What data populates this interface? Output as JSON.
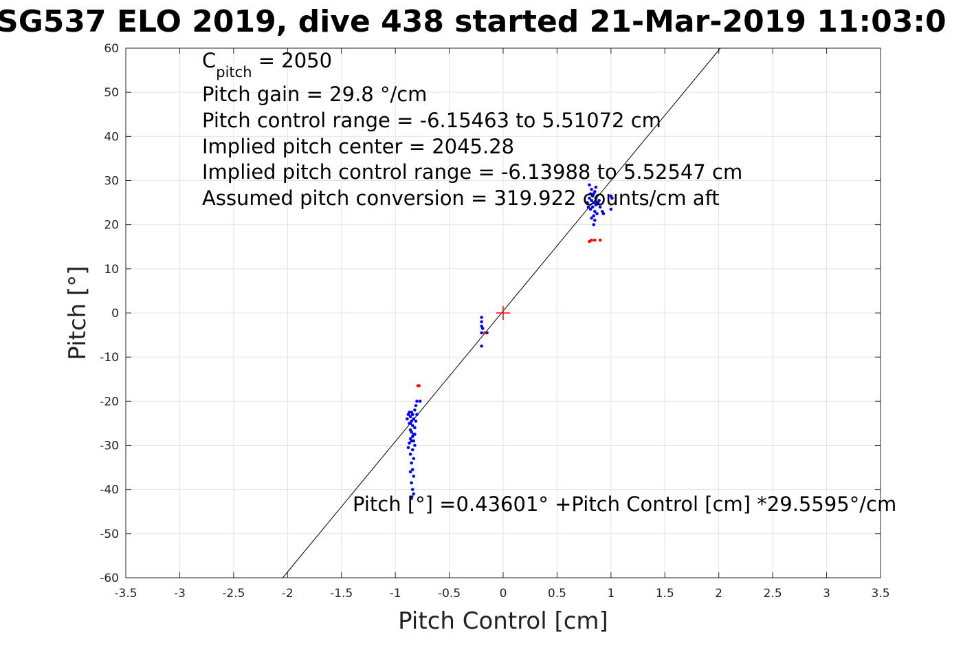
{
  "chart_data": {
    "type": "scatter",
    "title": "SG537 ELO 2019, dive 438 started 21-Mar-2019 11:03:0",
    "xlabel": "Pitch Control [cm]",
    "ylabel": "Pitch [°]",
    "xlim": [
      -3.5,
      3.5
    ],
    "ylim": [
      -60,
      60
    ],
    "xticks": [
      "-3.5",
      "-3",
      "-2.5",
      "-2",
      "-1.5",
      "-1",
      "-0.5",
      "0",
      "0.5",
      "1",
      "1.5",
      "2",
      "2.5",
      "3",
      "3.5"
    ],
    "yticks": [
      "60",
      "50",
      "40",
      "30",
      "20",
      "10",
      "0",
      "-10",
      "-20",
      "-30",
      "-40",
      "-50",
      "-60"
    ],
    "grid": true,
    "annotations": {
      "c_pitch_label": "C",
      "c_pitch_sub": "pitch",
      "c_pitch_value": " = 2050",
      "line2": "Pitch gain = 29.8 °/cm",
      "line3": "Pitch control range = -6.15463 to 5.51072 cm",
      "line4": "Implied pitch center = 2045.28",
      "line5": "Implied pitch control range = -6.13988 to 5.52547 cm",
      "line6": "Assumed pitch conversion = 319.922 counts/cm aft",
      "fit_equation": "Pitch [°] =0.43601° +Pitch Control [cm] *29.5595°/cm"
    },
    "fit_line": {
      "intercept": 0.43601,
      "slope": 29.5595,
      "color": "#000000"
    },
    "center_marker": {
      "x": 0,
      "y": 0,
      "color": "#ff0000"
    },
    "series": [
      {
        "color": "#0000ff",
        "points": [
          [
            -0.85,
            -22.5
          ],
          [
            -0.84,
            -23
          ],
          [
            -0.86,
            -23.5
          ],
          [
            -0.83,
            -24
          ],
          [
            -0.85,
            -24.5
          ],
          [
            -0.87,
            -25
          ],
          [
            -0.84,
            -25.5
          ],
          [
            -0.82,
            -26
          ],
          [
            -0.86,
            -26.5
          ],
          [
            -0.85,
            -27
          ],
          [
            -0.83,
            -27.5
          ],
          [
            -0.84,
            -28
          ],
          [
            -0.86,
            -28.5
          ],
          [
            -0.85,
            -29
          ],
          [
            -0.82,
            -30
          ],
          [
            -0.84,
            -31
          ],
          [
            -0.86,
            -32
          ],
          [
            -0.83,
            -33
          ],
          [
            -0.85,
            -34
          ],
          [
            -0.84,
            -35.5
          ],
          [
            -0.83,
            -37
          ],
          [
            -0.85,
            -38.5
          ],
          [
            -0.84,
            -40
          ],
          [
            -0.83,
            -41
          ],
          [
            -0.85,
            -42
          ],
          [
            -0.88,
            -23
          ],
          [
            -0.89,
            -24
          ],
          [
            -0.87,
            -29.5
          ],
          [
            -0.88,
            -30.5
          ],
          [
            -0.81,
            -21
          ],
          [
            -0.82,
            -22
          ],
          [
            -0.8,
            -20
          ],
          [
            -0.81,
            -24.5
          ],
          [
            -0.82,
            -27.5
          ],
          [
            -0.86,
            -36
          ],
          [
            -0.77,
            -20
          ],
          [
            -0.8,
            -23
          ],
          [
            -0.87,
            -22.5
          ],
          [
            -0.86,
            -25
          ],
          [
            -0.83,
            -29
          ],
          [
            -0.2,
            -1
          ],
          [
            -0.2,
            -2
          ],
          [
            -0.2,
            -3
          ],
          [
            -0.19,
            -3.5
          ],
          [
            -0.2,
            -4.5
          ],
          [
            -0.2,
            -7.5
          ],
          [
            -0.15,
            -4.5
          ],
          [
            0.8,
            29
          ],
          [
            0.82,
            28
          ],
          [
            0.84,
            27
          ],
          [
            0.86,
            28.5
          ],
          [
            0.8,
            26
          ],
          [
            0.82,
            25.5
          ],
          [
            0.84,
            25
          ],
          [
            0.86,
            24.5
          ],
          [
            0.88,
            25
          ],
          [
            0.83,
            24
          ],
          [
            0.81,
            23.5
          ],
          [
            0.85,
            23
          ],
          [
            0.87,
            22.5
          ],
          [
            0.84,
            22
          ],
          [
            0.82,
            21.5
          ],
          [
            0.85,
            21
          ],
          [
            0.84,
            20
          ],
          [
            0.9,
            24
          ],
          [
            0.92,
            23
          ],
          [
            1.0,
            26.5
          ],
          [
            1.01,
            26
          ],
          [
            1.0,
            23.5
          ],
          [
            0.93,
            22.5
          ],
          [
            0.78,
            25
          ],
          [
            0.79,
            24
          ],
          [
            0.81,
            27
          ],
          [
            0.83,
            26.5
          ],
          [
            0.86,
            26
          ],
          [
            0.89,
            25.5
          ],
          [
            0.85,
            27.5
          ]
        ]
      },
      {
        "color": "#ff0000",
        "points": [
          [
            -0.79,
            -16.5
          ],
          [
            -0.78,
            -16.5
          ],
          [
            -0.17,
            -4.5
          ],
          [
            0.8,
            16.2
          ],
          [
            0.82,
            16.5
          ],
          [
            0.85,
            16.5
          ],
          [
            0.9,
            16.5
          ]
        ]
      }
    ]
  }
}
